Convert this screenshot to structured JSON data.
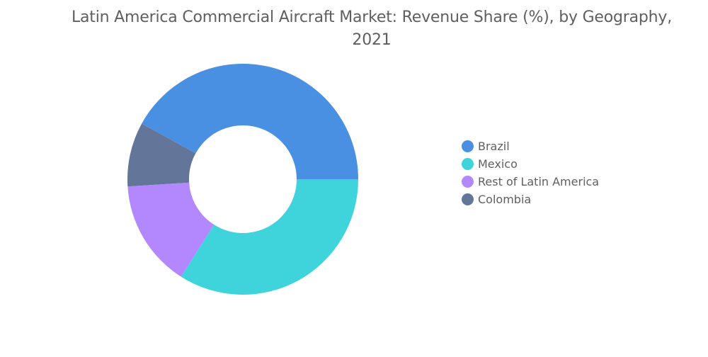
{
  "chart_data": {
    "type": "pie",
    "title": "Latin America Commercial Aircraft Market: Revenue Share (%), by Geography, 2021",
    "categories": [
      "Brazil",
      "Mexico",
      "Rest of Latin America",
      "Colombia"
    ],
    "values": [
      42,
      34,
      15,
      9
    ],
    "colors": [
      "#4a90e2",
      "#3fd3db",
      "#b388ff",
      "#637699"
    ],
    "legend_position": "right",
    "donut": true
  }
}
